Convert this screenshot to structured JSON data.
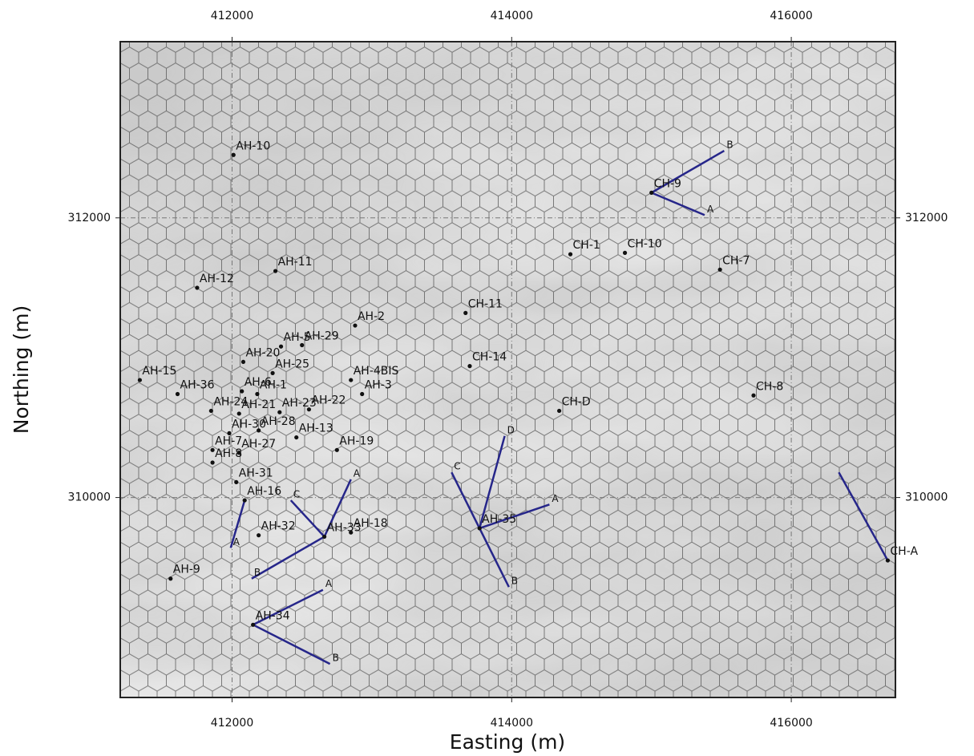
{
  "chart_data": {
    "type": "map",
    "xlabel": "Easting (m)",
    "ylabel": "Northing (m)",
    "xlim": [
      411200,
      416745
    ],
    "ylim": [
      308570,
      313260
    ],
    "xticks": [
      412000,
      414000,
      416000
    ],
    "yticks": [
      310000,
      312000
    ],
    "grid": true,
    "wells": [
      {
        "name": "AH-10",
        "x": 412010,
        "y": 312450
      },
      {
        "name": "AH-11",
        "x": 412310,
        "y": 311620
      },
      {
        "name": "AH-12",
        "x": 411750,
        "y": 311500
      },
      {
        "name": "AH-2",
        "x": 412880,
        "y": 311230
      },
      {
        "name": "AH-5",
        "x": 412350,
        "y": 311080
      },
      {
        "name": "AH-29",
        "x": 412500,
        "y": 311090
      },
      {
        "name": "AH-20",
        "x": 412080,
        "y": 310970
      },
      {
        "name": "AH-25",
        "x": 412290,
        "y": 310890
      },
      {
        "name": "AH-6",
        "x": 412070,
        "y": 310760
      },
      {
        "name": "AH-4BIS",
        "x": 412850,
        "y": 310840
      },
      {
        "name": "AH-15",
        "x": 411340,
        "y": 310840
      },
      {
        "name": "AH-36",
        "x": 411610,
        "y": 310740
      },
      {
        "name": "AH-1",
        "x": 412180,
        "y": 310740
      },
      {
        "name": "AH-3",
        "x": 412930,
        "y": 310740
      },
      {
        "name": "AH-24",
        "x": 411850,
        "y": 310620
      },
      {
        "name": "AH-22",
        "x": 412550,
        "y": 310630
      },
      {
        "name": "AH-21",
        "x": 412050,
        "y": 310600
      },
      {
        "name": "AH-23",
        "x": 412340,
        "y": 310610
      },
      {
        "name": "AH-30",
        "x": 411980,
        "y": 310460
      },
      {
        "name": "AH-28",
        "x": 412190,
        "y": 310480
      },
      {
        "name": "AH-13",
        "x": 412460,
        "y": 310430
      },
      {
        "name": "AH-19",
        "x": 412750,
        "y": 310340
      },
      {
        "name": "AH-7",
        "x": 411860,
        "y": 310340
      },
      {
        "name": "AH-27",
        "x": 412050,
        "y": 310320
      },
      {
        "name": "AH-8",
        "x": 411860,
        "y": 310250
      },
      {
        "name": "AH-31",
        "x": 412030,
        "y": 310110
      },
      {
        "name": "AH-16",
        "x": 412090,
        "y": 309980
      },
      {
        "name": "AH-32",
        "x": 412190,
        "y": 309730
      },
      {
        "name": "AH-33",
        "x": 412660,
        "y": 309720
      },
      {
        "name": "AH-18",
        "x": 412850,
        "y": 309750
      },
      {
        "name": "AH-9",
        "x": 411560,
        "y": 309420
      },
      {
        "name": "AH-34",
        "x": 412150,
        "y": 309090
      },
      {
        "name": "AH-35",
        "x": 413770,
        "y": 309780
      },
      {
        "name": "CH-9",
        "x": 415000,
        "y": 312180
      },
      {
        "name": "CH-1",
        "x": 414420,
        "y": 311740
      },
      {
        "name": "CH-10",
        "x": 414810,
        "y": 311750
      },
      {
        "name": "CH-7",
        "x": 415490,
        "y": 311630
      },
      {
        "name": "CH-11",
        "x": 413670,
        "y": 311320
      },
      {
        "name": "CH-14",
        "x": 413700,
        "y": 310940
      },
      {
        "name": "CH-D",
        "x": 414340,
        "y": 310620
      },
      {
        "name": "CH-8",
        "x": 415730,
        "y": 310730
      },
      {
        "name": "CH-A",
        "x": 416690,
        "y": 309550
      }
    ],
    "sections": [
      {
        "label": "A",
        "x": [
          412660,
          412850
        ],
        "y": [
          309720,
          310130
        ]
      },
      {
        "label": "B",
        "x": [
          412660,
          412140
        ],
        "y": [
          309720,
          309420
        ]
      },
      {
        "label": "C",
        "x": [
          412660,
          412420
        ],
        "y": [
          309720,
          309980
        ]
      },
      {
        "label": "A",
        "x": [
          412090,
          411990
        ],
        "y": [
          309980,
          309640
        ]
      },
      {
        "label": "A",
        "x": [
          412150,
          412650
        ],
        "y": [
          309090,
          309340
        ]
      },
      {
        "label": "B",
        "x": [
          412150,
          412700
        ],
        "y": [
          309090,
          308810
        ]
      },
      {
        "label": "A",
        "x": [
          413770,
          414270
        ],
        "y": [
          309780,
          309950
        ]
      },
      {
        "label": "B",
        "x": [
          413770,
          413980
        ],
        "y": [
          309780,
          309360
        ]
      },
      {
        "label": "C",
        "x": [
          413770,
          413570
        ],
        "y": [
          309780,
          310180
        ]
      },
      {
        "label": "D",
        "x": [
          413770,
          413950
        ],
        "y": [
          309780,
          310440
        ]
      },
      {
        "label": "A",
        "x": [
          415000,
          415380
        ],
        "y": [
          312180,
          312020
        ]
      },
      {
        "label": "B",
        "x": [
          415000,
          415520
        ],
        "y": [
          312180,
          312480
        ]
      },
      {
        "x": [
          416690,
          416340
        ],
        "y": [
          309550,
          310180
        ]
      }
    ]
  }
}
